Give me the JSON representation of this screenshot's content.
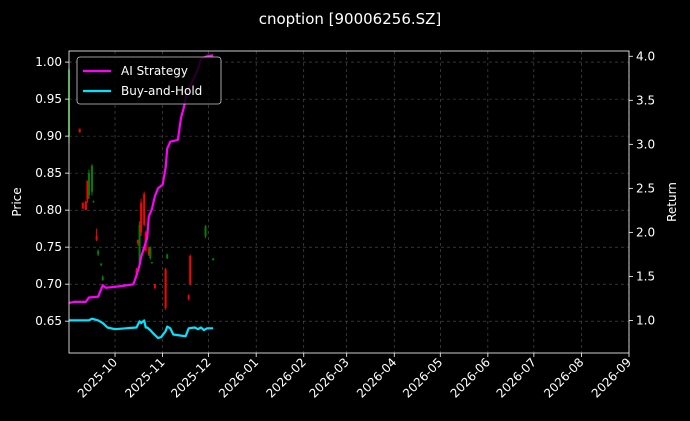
{
  "chart_data": {
    "type": "line",
    "title": "cnoption [90006256.SZ]",
    "ylabel": "Price",
    "y2label": "Return",
    "ylim": [
      0.607,
      1.015
    ],
    "y2lim": [
      0.63,
      4.06
    ],
    "xlim": [
      "2025-09-01",
      "2026-09-01"
    ],
    "grid": true,
    "legend_position": "top-left",
    "y_ticks": [
      0.65,
      0.7,
      0.75,
      0.8,
      0.85,
      0.9,
      0.95,
      1.0
    ],
    "y_tick_labels": [
      "0.65",
      "0.70",
      "0.75",
      "0.80",
      "0.85",
      "0.90",
      "0.95",
      "1.00"
    ],
    "y2_ticks": [
      1.0,
      1.5,
      2.0,
      2.5,
      3.0,
      3.5,
      4.0
    ],
    "y2_tick_labels": [
      "1.0",
      "1.5",
      "2.0",
      "2.5",
      "3.0",
      "3.5",
      "4.0"
    ],
    "x_ticks": [
      "2025-10-01",
      "2025-11-01",
      "2025-12-01",
      "2026-01-01",
      "2026-02-01",
      "2026-03-01",
      "2026-04-01",
      "2026-05-01",
      "2026-06-01",
      "2026-07-01",
      "2026-08-01",
      "2026-09-01"
    ],
    "x_tick_labels": [
      "2025-10",
      "2025-11",
      "2025-12",
      "2026-01",
      "2026-02",
      "2026-03",
      "2026-04",
      "2026-05",
      "2026-06",
      "2026-07",
      "2026-08",
      "2026-09"
    ],
    "colors": {
      "up": "#008000",
      "down": "#ff0000",
      "strategy": "#ff00ff",
      "buyhold": "#00e5ff",
      "grid": "#555555"
    },
    "candles": [
      {
        "date": "2025-09-01",
        "open": 0.9,
        "close": 0.99,
        "high": 0.995,
        "low": 0.89
      },
      {
        "date": "2025-09-08",
        "open": 0.91,
        "close": 0.905,
        "high": 0.91,
        "low": 0.905
      },
      {
        "date": "2025-09-10",
        "open": 0.81,
        "close": 0.802,
        "high": 0.81,
        "low": 0.802
      },
      {
        "date": "2025-09-12",
        "open": 0.812,
        "close": 0.8,
        "high": 0.812,
        "low": 0.8
      },
      {
        "date": "2025-09-13",
        "open": 0.84,
        "close": 0.815,
        "high": 0.84,
        "low": 0.81
      },
      {
        "date": "2025-09-14",
        "open": 0.82,
        "close": 0.85,
        "high": 0.855,
        "low": 0.815
      },
      {
        "date": "2025-09-16",
        "open": 0.825,
        "close": 0.86,
        "high": 0.862,
        "low": 0.82
      },
      {
        "date": "2025-09-17",
        "open": 0.812,
        "close": 0.812,
        "high": 0.813,
        "low": 0.81
      },
      {
        "date": "2025-09-19",
        "open": 0.765,
        "close": 0.76,
        "high": 0.775,
        "low": 0.758
      },
      {
        "date": "2025-09-20",
        "open": 0.74,
        "close": 0.745,
        "high": 0.747,
        "low": 0.738
      },
      {
        "date": "2025-09-22",
        "open": 0.725,
        "close": 0.728,
        "high": 0.728,
        "low": 0.725
      },
      {
        "date": "2025-09-23",
        "open": 0.705,
        "close": 0.71,
        "high": 0.712,
        "low": 0.705
      },
      {
        "date": "2025-10-15",
        "open": 0.72,
        "close": 0.712,
        "high": 0.722,
        "low": 0.71
      },
      {
        "date": "2025-10-16",
        "open": 0.76,
        "close": 0.755,
        "high": 0.76,
        "low": 0.752
      },
      {
        "date": "2025-10-17",
        "open": 0.73,
        "close": 0.78,
        "high": 0.785,
        "low": 0.725
      },
      {
        "date": "2025-10-18",
        "open": 0.81,
        "close": 0.77,
        "high": 0.815,
        "low": 0.765
      },
      {
        "date": "2025-10-20",
        "open": 0.822,
        "close": 0.78,
        "high": 0.825,
        "low": 0.778
      },
      {
        "date": "2025-10-21",
        "open": 0.77,
        "close": 0.745,
        "high": 0.772,
        "low": 0.745
      },
      {
        "date": "2025-10-23",
        "open": 0.748,
        "close": 0.74,
        "high": 0.75,
        "low": 0.738
      },
      {
        "date": "2025-10-24",
        "open": 0.735,
        "close": 0.75,
        "high": 0.751,
        "low": 0.733
      },
      {
        "date": "2025-10-25",
        "open": 0.728,
        "close": 0.73,
        "high": 0.73,
        "low": 0.728
      },
      {
        "date": "2025-10-27",
        "open": 0.7,
        "close": 0.695,
        "high": 0.7,
        "low": 0.693
      },
      {
        "date": "2025-11-03",
        "open": 0.72,
        "close": 0.668,
        "high": 0.722,
        "low": 0.665
      },
      {
        "date": "2025-11-04",
        "open": 0.735,
        "close": 0.74,
        "high": 0.741,
        "low": 0.734
      },
      {
        "date": "2025-11-18",
        "open": 0.685,
        "close": 0.68,
        "high": 0.686,
        "low": 0.678
      },
      {
        "date": "2025-11-19",
        "open": 0.738,
        "close": 0.7,
        "high": 0.74,
        "low": 0.698
      },
      {
        "date": "2025-11-29",
        "open": 0.765,
        "close": 0.778,
        "high": 0.78,
        "low": 0.762
      },
      {
        "date": "2025-12-04",
        "open": 0.732,
        "close": 0.735,
        "high": 0.735,
        "low": 0.732
      }
    ],
    "series": [
      {
        "name": "AI Strategy",
        "axis": "right",
        "points": [
          [
            "2025-09-01",
            1.2
          ],
          [
            "2025-09-05",
            1.21
          ],
          [
            "2025-09-12",
            1.21
          ],
          [
            "2025-09-14",
            1.26
          ],
          [
            "2025-09-20",
            1.27
          ],
          [
            "2025-09-23",
            1.4
          ],
          [
            "2025-09-25",
            1.37
          ],
          [
            "2025-10-05",
            1.39
          ],
          [
            "2025-10-13",
            1.41
          ],
          [
            "2025-10-15",
            1.51
          ],
          [
            "2025-10-17",
            1.63
          ],
          [
            "2025-10-18",
            1.72
          ],
          [
            "2025-10-20",
            1.83
          ],
          [
            "2025-10-22",
            1.94
          ],
          [
            "2025-10-23",
            2.18
          ],
          [
            "2025-10-25",
            2.26
          ],
          [
            "2025-10-27",
            2.41
          ],
          [
            "2025-10-29",
            2.5
          ],
          [
            "2025-11-01",
            2.54
          ],
          [
            "2025-11-03",
            2.74
          ],
          [
            "2025-11-04",
            2.95
          ],
          [
            "2025-11-06",
            3.03
          ],
          [
            "2025-11-11",
            3.05
          ],
          [
            "2025-11-13",
            3.3
          ],
          [
            "2025-11-15",
            3.43
          ],
          [
            "2025-11-17",
            3.61
          ],
          [
            "2025-11-20",
            3.7
          ],
          [
            "2025-11-24",
            3.85
          ],
          [
            "2025-11-26",
            3.97
          ],
          [
            "2025-11-30",
            4.0
          ],
          [
            "2025-12-04",
            4.01
          ]
        ]
      },
      {
        "name": "Buy-and-Hold",
        "axis": "right",
        "points": [
          [
            "2025-09-01",
            1.0
          ],
          [
            "2025-09-05",
            1.0
          ],
          [
            "2025-09-14",
            1.0
          ],
          [
            "2025-09-16",
            1.02
          ],
          [
            "2025-09-20",
            1.0
          ],
          [
            "2025-09-23",
            0.97
          ],
          [
            "2025-09-26",
            0.92
          ],
          [
            "2025-10-01",
            0.9
          ],
          [
            "2025-10-08",
            0.91
          ],
          [
            "2025-10-15",
            0.92
          ],
          [
            "2025-10-17",
            0.99
          ],
          [
            "2025-10-18",
            0.97
          ],
          [
            "2025-10-20",
            1.0
          ],
          [
            "2025-10-21",
            0.92
          ],
          [
            "2025-10-22",
            0.92
          ],
          [
            "2025-10-24",
            0.89
          ],
          [
            "2025-10-26",
            0.85
          ],
          [
            "2025-10-29",
            0.8
          ],
          [
            "2025-10-31",
            0.81
          ],
          [
            "2025-11-03",
            0.88
          ],
          [
            "2025-11-04",
            0.93
          ],
          [
            "2025-11-06",
            0.91
          ],
          [
            "2025-11-08",
            0.84
          ],
          [
            "2025-11-12",
            0.83
          ],
          [
            "2025-11-16",
            0.82
          ],
          [
            "2025-11-18",
            0.91
          ],
          [
            "2025-11-22",
            0.92
          ],
          [
            "2025-11-24",
            0.9
          ],
          [
            "2025-11-26",
            0.92
          ],
          [
            "2025-11-28",
            0.89
          ],
          [
            "2025-11-30",
            0.91
          ],
          [
            "2025-12-04",
            0.91
          ]
        ]
      }
    ]
  }
}
